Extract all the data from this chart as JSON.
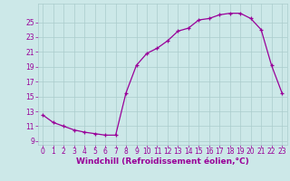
{
  "x": [
    0,
    1,
    2,
    3,
    4,
    5,
    6,
    7,
    8,
    9,
    10,
    11,
    12,
    13,
    14,
    15,
    16,
    17,
    18,
    19,
    20,
    21,
    22,
    23
  ],
  "y": [
    12.5,
    11.5,
    11.0,
    10.5,
    10.2,
    10.0,
    9.8,
    9.8,
    15.5,
    19.2,
    20.8,
    21.5,
    22.5,
    23.8,
    24.2,
    25.3,
    25.5,
    26.0,
    26.2,
    26.2,
    25.5,
    24.0,
    19.2,
    15.5
  ],
  "line_color": "#990099",
  "marker": "+",
  "background_color": "#cce8e8",
  "grid_color": "#aacccc",
  "tick_color": "#990099",
  "label_color": "#990099",
  "xlabel": "Windchill (Refroidissement éolien,°C)",
  "xlim": [
    -0.5,
    23.5
  ],
  "ylim": [
    8.5,
    27.5
  ],
  "yticks": [
    9,
    11,
    13,
    15,
    17,
    19,
    21,
    23,
    25
  ],
  "xticks": [
    0,
    1,
    2,
    3,
    4,
    5,
    6,
    7,
    8,
    9,
    10,
    11,
    12,
    13,
    14,
    15,
    16,
    17,
    18,
    19,
    20,
    21,
    22,
    23
  ],
  "axis_fontsize": 5.5,
  "label_fontsize": 6.5
}
